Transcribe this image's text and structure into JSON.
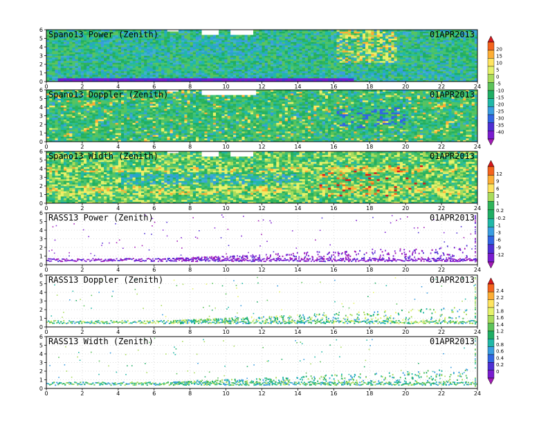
{
  "chart_data": [
    {
      "type": "heatmap",
      "title": "Spano13 Power (Zenith)",
      "date": "01APR2013",
      "x_ticks": [
        0,
        2,
        4,
        6,
        8,
        10,
        12,
        14,
        16,
        18,
        20,
        22,
        24
      ],
      "y_ticks": [
        0,
        1,
        2,
        3,
        4,
        5,
        6
      ],
      "xlim": [
        0,
        24
      ],
      "ylim": [
        0,
        6
      ],
      "grid": true,
      "colorbar": "power"
    },
    {
      "type": "heatmap",
      "title": "Spano13 Doppler (Zenith)",
      "date": "01APR2013",
      "x_ticks": [
        0,
        2,
        4,
        6,
        8,
        10,
        12,
        14,
        16,
        18,
        20,
        22,
        24
      ],
      "y_ticks": [
        0,
        1,
        2,
        3,
        4,
        5,
        6
      ],
      "xlim": [
        0,
        24
      ],
      "ylim": [
        0,
        6
      ],
      "grid": true,
      "colorbar": "power"
    },
    {
      "type": "heatmap",
      "title": "Spano13 Width (Zenith)",
      "date": "01APR2013",
      "x_ticks": [
        0,
        2,
        4,
        6,
        8,
        10,
        12,
        14,
        16,
        18,
        20,
        22,
        24
      ],
      "y_ticks": [
        0,
        1,
        2,
        3,
        4,
        5,
        6
      ],
      "xlim": [
        0,
        24
      ],
      "ylim": [
        0,
        6
      ],
      "grid": true,
      "colorbar": "width"
    },
    {
      "type": "scatter",
      "title": "RASS13 Power (Zenith)",
      "date": "01APR2013",
      "x_ticks": [
        0,
        2,
        4,
        6,
        8,
        10,
        12,
        14,
        16,
        18,
        20,
        22,
        24
      ],
      "y_ticks": [
        0,
        1,
        2,
        3,
        4,
        5,
        6
      ],
      "xlim": [
        0,
        24
      ],
      "ylim": [
        0,
        6
      ],
      "grid": true,
      "colorbar": "width"
    },
    {
      "type": "scatter",
      "title": "RASS13 Doppler (Zenith)",
      "date": "01APR2013",
      "x_ticks": [
        0,
        2,
        4,
        6,
        8,
        10,
        12,
        14,
        16,
        18,
        20,
        22,
        24
      ],
      "y_ticks": [
        0,
        1,
        2,
        3,
        4,
        5,
        6
      ],
      "xlim": [
        0,
        24
      ],
      "ylim": [
        0,
        6
      ],
      "grid": true,
      "colorbar": "rass"
    },
    {
      "type": "scatter",
      "title": "RASS13 Width (Zenith)",
      "date": "01APR2013",
      "x_ticks": [
        0,
        2,
        4,
        6,
        8,
        10,
        12,
        14,
        16,
        18,
        20,
        22,
        24
      ],
      "y_ticks": [
        0,
        1,
        2,
        3,
        4,
        5,
        6
      ],
      "xlim": [
        0,
        24
      ],
      "ylim": [
        0,
        6
      ],
      "grid": true,
      "colorbar": "rass"
    }
  ],
  "colorbars": {
    "power": {
      "labels": [
        "20",
        "15",
        "10",
        "5",
        "0",
        "-5",
        "-10",
        "-15",
        "-20",
        "-25",
        "-30",
        "-35",
        "-40"
      ],
      "colors": [
        "#d7181d",
        "#f4641d",
        "#fdae35",
        "#fee45f",
        "#e6f26a",
        "#a9dc5c",
        "#5cc35a",
        "#1fae64",
        "#20b8a7",
        "#3a9de0",
        "#3165e3",
        "#4e2fd4",
        "#7a1cd0",
        "#a21ab5"
      ]
    },
    "width": {
      "labels": [
        "12",
        "9",
        "6",
        "3",
        "1",
        "0.2",
        "-0.2",
        "-1",
        "-3",
        "-6",
        "-9",
        "-12"
      ],
      "colors": [
        "#d7181d",
        "#f4641d",
        "#fdae35",
        "#fee45f",
        "#a9dc5c",
        "#2fb45a",
        "#1fae64",
        "#20b8a7",
        "#3a9de0",
        "#3165e3",
        "#4e2fd4",
        "#7a1cd0",
        "#a21ab5"
      ]
    },
    "rass": {
      "labels": [
        "2.4",
        "2.2",
        "2",
        "1.8",
        "1.6",
        "1.4",
        "1.2",
        "1",
        "0.8",
        "0.6",
        "0.4",
        "0.2",
        "0"
      ],
      "colors": [
        "#d7181d",
        "#f4641d",
        "#fdae35",
        "#fee45f",
        "#e6f26a",
        "#a9dc5c",
        "#5cc35a",
        "#1fae64",
        "#20b8a7",
        "#3a9de0",
        "#3165e3",
        "#4e2fd4",
        "#7a1cd0",
        "#a21ab5"
      ]
    }
  }
}
